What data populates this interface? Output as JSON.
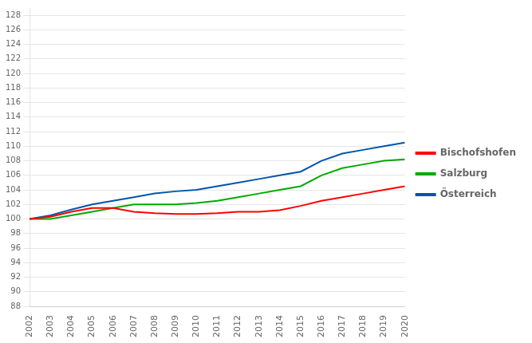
{
  "chart_data": {
    "type": "line",
    "x": [
      2002,
      2003,
      2004,
      2005,
      2006,
      2007,
      2008,
      2009,
      2010,
      2011,
      2012,
      2013,
      2014,
      2015,
      2016,
      2017,
      2018,
      2019,
      2020
    ],
    "series": [
      {
        "name": "Bischofshofen",
        "color": "#ff0000",
        "values": [
          100.0,
          100.3,
          101.0,
          101.5,
          101.5,
          101.0,
          100.8,
          100.7,
          100.7,
          100.8,
          101.0,
          101.0,
          101.2,
          101.8,
          102.5,
          103.0,
          103.5,
          104.0,
          104.5
        ]
      },
      {
        "name": "Salzburg",
        "color": "#00aa00",
        "values": [
          100.0,
          100.0,
          100.5,
          101.0,
          101.5,
          102.0,
          102.0,
          102.0,
          102.2,
          102.5,
          103.0,
          103.5,
          104.0,
          104.5,
          106.0,
          107.0,
          107.5,
          108.0,
          108.2
        ]
      },
      {
        "name": "Österreich",
        "color": "#0055aa",
        "values": [
          100.0,
          100.5,
          101.3,
          102.0,
          102.5,
          103.0,
          103.5,
          103.8,
          104.0,
          104.5,
          105.0,
          105.5,
          106.0,
          106.5,
          108.0,
          109.0,
          109.5,
          110.0,
          110.5
        ]
      }
    ],
    "xlim": [
      2002,
      2020
    ],
    "xticks": [
      2002,
      2003,
      2004,
      2005,
      2006,
      2007,
      2008,
      2009,
      2010,
      2011,
      2012,
      2013,
      2014,
      2015,
      2016,
      2017,
      2018,
      2019,
      2020
    ],
    "ylim": [
      88,
      129
    ],
    "yticks": [
      88,
      90,
      92,
      94,
      96,
      98,
      100,
      102,
      104,
      106,
      108,
      110,
      112,
      114,
      116,
      118,
      120,
      122,
      124,
      126,
      128
    ],
    "grid": "y",
    "legend": "right"
  }
}
